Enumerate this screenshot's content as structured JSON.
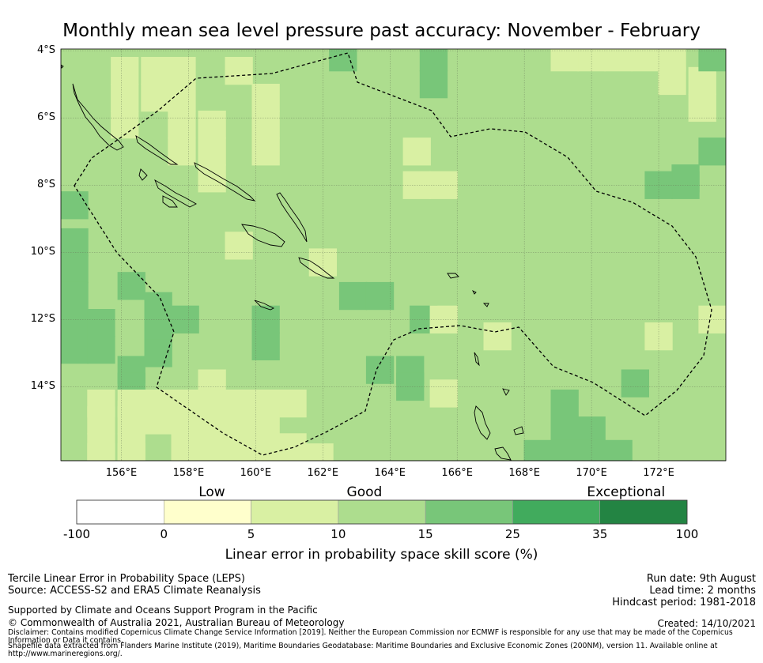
{
  "title": "Monthly mean sea level pressure past accuracy: November - February",
  "map": {
    "lat_labels": [
      "4°S",
      "6°S",
      "8°S",
      "10°S",
      "12°S",
      "14°S"
    ],
    "lon_labels": [
      "156°E",
      "158°E",
      "160°E",
      "162°E",
      "164°E",
      "166°E",
      "168°E",
      "170°E",
      "172°E"
    ],
    "extent": {
      "lon": [
        154.2,
        174.0
      ],
      "lat": [
        -3.95,
        -16.2
      ]
    },
    "gridlines": true,
    "background_class": 3,
    "cell_size_deg": 0.83,
    "cells": [
      {
        "lon": 162.6,
        "lat": -4.2,
        "class": 4
      },
      {
        "lon": 165.3,
        "lat": -4.2,
        "class": 4
      },
      {
        "lon": 165.3,
        "lat": -5.0,
        "class": 4
      },
      {
        "lon": 156.1,
        "lat": -4.6,
        "class": 2
      },
      {
        "lon": 157.0,
        "lat": -4.6,
        "class": 2
      },
      {
        "lon": 157.8,
        "lat": -4.6,
        "class": 2
      },
      {
        "lon": 159.5,
        "lat": -4.6,
        "class": 2
      },
      {
        "lon": 156.1,
        "lat": -5.4,
        "class": 2
      },
      {
        "lon": 157.0,
        "lat": -5.4,
        "class": 2
      },
      {
        "lon": 157.8,
        "lat": -5.4,
        "class": 2
      },
      {
        "lon": 160.3,
        "lat": -5.4,
        "class": 2
      },
      {
        "lon": 156.1,
        "lat": -6.2,
        "class": 2
      },
      {
        "lon": 157.8,
        "lat": -6.2,
        "class": 2
      },
      {
        "lon": 158.7,
        "lat": -6.2,
        "class": 2
      },
      {
        "lon": 160.3,
        "lat": -6.2,
        "class": 2
      },
      {
        "lon": 157.8,
        "lat": -7.0,
        "class": 2
      },
      {
        "lon": 158.7,
        "lat": -7.0,
        "class": 2
      },
      {
        "lon": 160.3,
        "lat": -7.0,
        "class": 2
      },
      {
        "lon": 158.7,
        "lat": -7.8,
        "class": 2
      },
      {
        "lon": 164.8,
        "lat": -7.0,
        "class": 2
      },
      {
        "lon": 164.8,
        "lat": -8.0,
        "class": 2
      },
      {
        "lon": 165.6,
        "lat": -8.0,
        "class": 2
      },
      {
        "lon": 170.0,
        "lat": -4.2,
        "class": 2
      },
      {
        "lon": 170.8,
        "lat": -4.2,
        "class": 2
      },
      {
        "lon": 171.6,
        "lat": -4.2,
        "class": 2
      },
      {
        "lon": 172.4,
        "lat": -4.2,
        "class": 2
      },
      {
        "lon": 169.2,
        "lat": -4.2,
        "class": 2
      },
      {
        "lon": 172.4,
        "lat": -4.9,
        "class": 2
      },
      {
        "lon": 173.3,
        "lat": -4.9,
        "class": 2
      },
      {
        "lon": 173.3,
        "lat": -5.7,
        "class": 2
      },
      {
        "lon": 173.6,
        "lat": -4.2,
        "class": 4
      },
      {
        "lon": 173.6,
        "lat": -7.0,
        "class": 4
      },
      {
        "lon": 172.8,
        "lat": -7.8,
        "class": 4
      },
      {
        "lon": 172.8,
        "lat": -8.0,
        "class": 4
      },
      {
        "lon": 172.0,
        "lat": -8.0,
        "class": 4
      },
      {
        "lon": 154.6,
        "lat": -8.6,
        "class": 4
      },
      {
        "lon": 154.6,
        "lat": -9.7,
        "class": 4
      },
      {
        "lon": 154.6,
        "lat": -10.5,
        "class": 4
      },
      {
        "lon": 154.6,
        "lat": -11.3,
        "class": 4
      },
      {
        "lon": 154.6,
        "lat": -12.1,
        "class": 4
      },
      {
        "lon": 155.4,
        "lat": -12.1,
        "class": 4
      },
      {
        "lon": 154.6,
        "lat": -12.9,
        "class": 4
      },
      {
        "lon": 155.4,
        "lat": -12.9,
        "class": 4
      },
      {
        "lon": 156.3,
        "lat": -11.0,
        "class": 4
      },
      {
        "lon": 157.1,
        "lat": -11.6,
        "class": 4
      },
      {
        "lon": 157.1,
        "lat": -12.4,
        "class": 4
      },
      {
        "lon": 157.9,
        "lat": -12.0,
        "class": 4
      },
      {
        "lon": 157.1,
        "lat": -13.0,
        "class": 4
      },
      {
        "lon": 156.3,
        "lat": -13.5,
        "class": 4
      },
      {
        "lon": 156.3,
        "lat": -14.0,
        "class": 4
      },
      {
        "lon": 160.3,
        "lat": -12.0,
        "class": 4
      },
      {
        "lon": 160.3,
        "lat": -12.8,
        "class": 4
      },
      {
        "lon": 162.9,
        "lat": -11.3,
        "class": 4
      },
      {
        "lon": 163.7,
        "lat": -11.3,
        "class": 4
      },
      {
        "lon": 165.0,
        "lat": -12.0,
        "class": 4
      },
      {
        "lon": 163.7,
        "lat": -13.5,
        "class": 4
      },
      {
        "lon": 164.6,
        "lat": -13.5,
        "class": 4
      },
      {
        "lon": 164.6,
        "lat": -14.0,
        "class": 4
      },
      {
        "lon": 169.2,
        "lat": -14.5,
        "class": 4
      },
      {
        "lon": 169.2,
        "lat": -15.3,
        "class": 4
      },
      {
        "lon": 170.0,
        "lat": -15.3,
        "class": 4
      },
      {
        "lon": 171.3,
        "lat": -13.9,
        "class": 4
      },
      {
        "lon": 168.4,
        "lat": -16.0,
        "class": 4
      },
      {
        "lon": 169.2,
        "lat": -16.0,
        "class": 4
      },
      {
        "lon": 170.0,
        "lat": -16.0,
        "class": 4
      },
      {
        "lon": 170.8,
        "lat": -16.0,
        "class": 4
      },
      {
        "lon": 159.5,
        "lat": -9.8,
        "class": 2
      },
      {
        "lon": 162.0,
        "lat": -10.3,
        "class": 2
      },
      {
        "lon": 165.6,
        "lat": -12.0,
        "class": 2
      },
      {
        "lon": 167.2,
        "lat": -12.5,
        "class": 2
      },
      {
        "lon": 172.0,
        "lat": -12.5,
        "class": 2
      },
      {
        "lon": 173.6,
        "lat": -12.0,
        "class": 2
      },
      {
        "lon": 165.6,
        "lat": -14.2,
        "class": 2
      },
      {
        "lon": 158.7,
        "lat": -13.9,
        "class": 2
      },
      {
        "lon": 155.4,
        "lat": -14.5,
        "class": 2
      },
      {
        "lon": 156.3,
        "lat": -14.5,
        "class": 2
      },
      {
        "lon": 157.1,
        "lat": -14.5,
        "class": 2
      },
      {
        "lon": 157.9,
        "lat": -14.5,
        "class": 2
      },
      {
        "lon": 158.7,
        "lat": -14.5,
        "class": 2
      },
      {
        "lon": 159.5,
        "lat": -14.5,
        "class": 2
      },
      {
        "lon": 160.3,
        "lat": -14.5,
        "class": 2
      },
      {
        "lon": 161.1,
        "lat": -14.5,
        "class": 2
      },
      {
        "lon": 155.4,
        "lat": -15.0,
        "class": 2
      },
      {
        "lon": 156.3,
        "lat": -15.0,
        "class": 2
      },
      {
        "lon": 157.1,
        "lat": -15.0,
        "class": 2
      },
      {
        "lon": 157.9,
        "lat": -15.0,
        "class": 2
      },
      {
        "lon": 158.7,
        "lat": -15.0,
        "class": 2
      },
      {
        "lon": 159.5,
        "lat": -15.0,
        "class": 2
      },
      {
        "lon": 160.3,
        "lat": -15.0,
        "class": 2
      },
      {
        "lon": 155.4,
        "lat": -15.8,
        "class": 2
      },
      {
        "lon": 156.3,
        "lat": -15.8,
        "class": 2
      },
      {
        "lon": 157.9,
        "lat": -15.8,
        "class": 2
      },
      {
        "lon": 158.7,
        "lat": -15.8,
        "class": 2
      },
      {
        "lon": 159.5,
        "lat": -15.8,
        "class": 2
      },
      {
        "lon": 160.3,
        "lat": -15.8,
        "class": 2
      },
      {
        "lon": 161.1,
        "lat": -15.8,
        "class": 2
      },
      {
        "lon": 155.4,
        "lat": -16.1,
        "class": 2
      },
      {
        "lon": 156.3,
        "lat": -16.1,
        "class": 2
      },
      {
        "lon": 158.7,
        "lat": -16.1,
        "class": 2
      },
      {
        "lon": 159.5,
        "lat": -16.1,
        "class": 2
      },
      {
        "lon": 160.3,
        "lat": -16.1,
        "class": 2
      },
      {
        "lon": 161.1,
        "lat": -16.1,
        "class": 2
      },
      {
        "lon": 161.9,
        "lat": -16.1,
        "class": 2
      }
    ]
  },
  "colorbar": {
    "ticks": [
      "-100",
      "0",
      "5",
      "10",
      "15",
      "25",
      "35",
      "100"
    ],
    "colors": [
      "#ffffff",
      "#ffffcc",
      "#d9f0a3",
      "#addd8e",
      "#78c679",
      "#41ab5d",
      "#238443"
    ],
    "category_labels": [
      "Low",
      "Good",
      "Exceptional"
    ],
    "label": "Linear error in probability space skill score (%)"
  },
  "footer": {
    "method": "Tercile Linear Error in Probability Space (LEPS)",
    "source": "Source: ACCESS-S2 and ERA5 Climate Reanalysis",
    "supported": "Supported by Climate and Oceans Support Program in the Pacific",
    "copyright": "© Commonwealth of Australia 2021, Australian Bureau of Meteorology",
    "disclaimer": "Disclaimer: Contains modified Copernicus Climate Change Service Information [2019]. Neither the European Commission nor ECMWF is responsible for any use that may be made of the Copernicus Information or Data it contains.",
    "shapefile": "Shapefile data extracted from Flanders Marine Institute (2019), Maritime Boundaries Geodatabase: Maritime Boundaries and Exclusive Economic Zones (200NM), version 11. Available online at http://www.marineregions.org/.",
    "run_date": "Run date: 9th August",
    "lead_time": "Lead time: 2 months",
    "hindcast": "Hindcast period: 1981-2018",
    "created": "Created: 14/10/2021"
  }
}
